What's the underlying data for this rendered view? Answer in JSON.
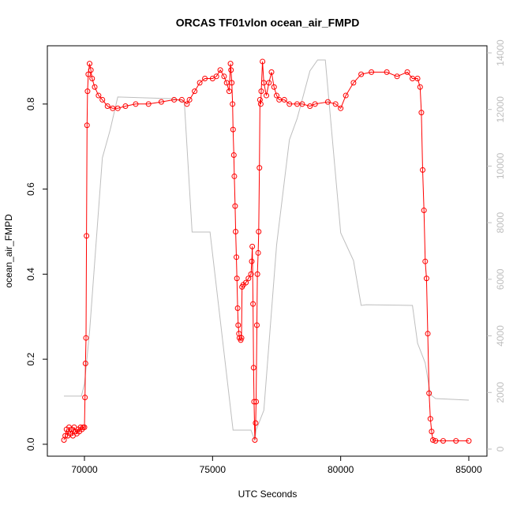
{
  "chart_data": {
    "type": "line",
    "title": "ORCAS TF01vlon ocean_air_FMPD",
    "x_label": "UTC Seconds",
    "y_label": "ocean_air_FMPD",
    "xlim": [
      68552,
      85709
    ],
    "xticks": [
      70000,
      75000,
      80000,
      85000
    ],
    "ylim": [
      -0.028,
      0.937
    ],
    "yticks": [
      {
        "value": 0,
        "label": "0.0"
      },
      0.2,
      0.4,
      0.6,
      0.8
    ],
    "y2lim": [
      -251,
      14251
    ],
    "y2ticks": [
      0,
      2000,
      4000,
      6000,
      8000,
      10000,
      12000,
      14000
    ],
    "y2_color": "#bebebe",
    "series": [
      {
        "color": "#ff0000",
        "markers": true,
        "x": [
          69200,
          69250,
          69300,
          69350,
          69400,
          69450,
          69500,
          69550,
          69600,
          69650,
          69700,
          69750,
          69800,
          69850,
          69900,
          69950,
          70000,
          70020,
          70040,
          70060,
          70080,
          70100,
          70120,
          70150,
          70200,
          70250,
          70300,
          70400,
          70550,
          70700,
          70900,
          71100,
          71300,
          71600,
          72000,
          72500,
          73000,
          73500,
          73800,
          74000,
          74100,
          74300,
          74500,
          74700,
          75000,
          75150,
          75300,
          75450,
          75550,
          75650,
          75700,
          75720,
          75750,
          75780,
          75800,
          75830,
          75850,
          75880,
          75900,
          75930,
          75950,
          75980,
          76000,
          76030,
          76050,
          76100,
          76130,
          76150,
          76200,
          76300,
          76400,
          76500,
          76530,
          76550,
          76580,
          76600,
          76620,
          76650,
          76680,
          76700,
          76730,
          76750,
          76780,
          76800,
          76830,
          76850,
          76880,
          76900,
          76950,
          77000,
          77100,
          77200,
          77300,
          77400,
          77500,
          77600,
          77800,
          78000,
          78300,
          78500,
          78800,
          79000,
          79500,
          79800,
          80000,
          80200,
          80500,
          80800,
          81200,
          81800,
          82200,
          82600,
          82800,
          83000,
          83100,
          83150,
          83200,
          83250,
          83300,
          83350,
          83400,
          83450,
          83500,
          83550,
          83600,
          83700,
          84000,
          84500,
          85000
        ],
        "values": [
          0.01,
          0.02,
          0.035,
          0.02,
          0.04,
          0.025,
          0.035,
          0.02,
          0.04,
          0.03,
          0.025,
          0.035,
          0.03,
          0.04,
          0.035,
          0.04,
          0.04,
          0.11,
          0.19,
          0.25,
          0.49,
          0.75,
          0.83,
          0.87,
          0.895,
          0.88,
          0.86,
          0.84,
          0.82,
          0.81,
          0.795,
          0.79,
          0.79,
          0.795,
          0.8,
          0.8,
          0.805,
          0.81,
          0.81,
          0.8,
          0.81,
          0.83,
          0.85,
          0.86,
          0.86,
          0.865,
          0.88,
          0.865,
          0.85,
          0.83,
          0.895,
          0.88,
          0.85,
          0.8,
          0.74,
          0.68,
          0.63,
          0.56,
          0.5,
          0.44,
          0.39,
          0.32,
          0.28,
          0.26,
          0.25,
          0.245,
          0.25,
          0.37,
          0.375,
          0.38,
          0.39,
          0.4,
          0.43,
          0.465,
          0.33,
          0.18,
          0.1,
          0.01,
          0.05,
          0.1,
          0.28,
          0.4,
          0.45,
          0.5,
          0.65,
          0.81,
          0.8,
          0.83,
          0.9,
          0.85,
          0.82,
          0.85,
          0.875,
          0.84,
          0.82,
          0.81,
          0.81,
          0.8,
          0.8,
          0.8,
          0.795,
          0.8,
          0.805,
          0.8,
          0.79,
          0.82,
          0.85,
          0.87,
          0.875,
          0.875,
          0.865,
          0.875,
          0.86,
          0.86,
          0.84,
          0.78,
          0.645,
          0.55,
          0.43,
          0.39,
          0.26,
          0.12,
          0.06,
          0.03,
          0.01,
          0.008,
          0.008,
          0.008,
          0.008
        ]
      },
      {
        "color": "#bebebe",
        "axis": "y2",
        "markers": false,
        "x": [
          69200,
          69880,
          70000,
          70200,
          70700,
          71000,
          71300,
          73500,
          73900,
          74200,
          74900,
          75800,
          76500,
          76650,
          76700,
          77000,
          77500,
          78000,
          78300,
          78800,
          79100,
          79400,
          80000,
          80500,
          80800,
          81000,
          82800,
          83000,
          83300,
          83500,
          83700,
          85000
        ],
        "values": [
          1870,
          1870,
          2300,
          4150,
          10290,
          11270,
          12440,
          12380,
          12240,
          7670,
          7670,
          670,
          670,
          300,
          670,
          1370,
          7220,
          10930,
          11680,
          13360,
          13750,
          13750,
          7640,
          6660,
          5075,
          5100,
          5075,
          3740,
          3040,
          1925,
          1785,
          1730
        ]
      }
    ]
  }
}
